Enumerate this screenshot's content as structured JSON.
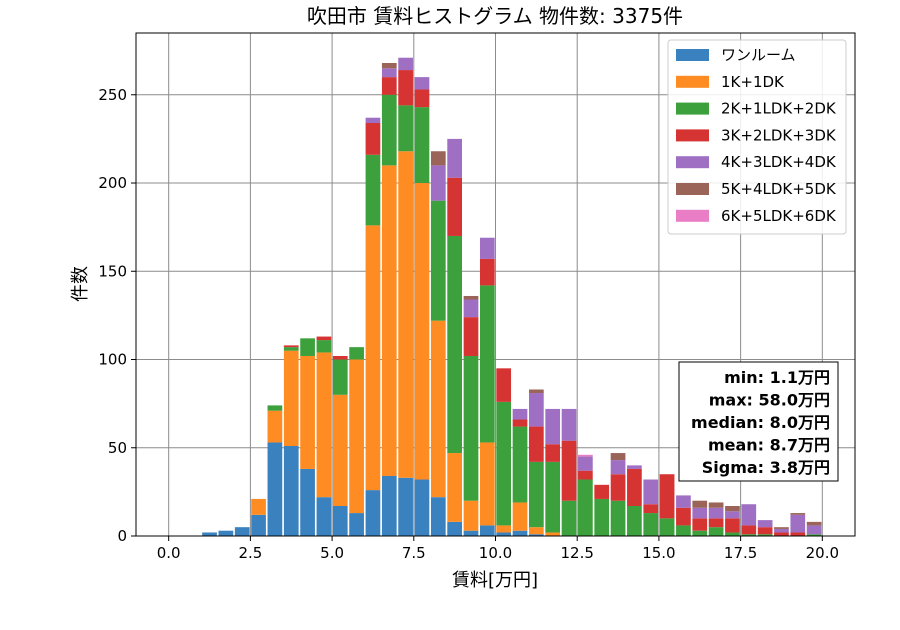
{
  "chart_data": {
    "type": "bar",
    "stacked": true,
    "title": "吹田市 賃料ヒストグラム  物件数: 3375件",
    "xlabel": "賃料[万円]",
    "ylabel": "件数",
    "xlim": [
      -1.0,
      21.0
    ],
    "ylim": [
      0,
      285
    ],
    "xticks": [
      "0.0",
      "2.5",
      "5.0",
      "7.5",
      "10.0",
      "12.5",
      "15.0",
      "17.5",
      "20.0"
    ],
    "xtick_values": [
      0,
      2.5,
      5,
      7.5,
      10,
      12.5,
      15,
      17.5,
      20
    ],
    "yticks": [
      "0",
      "50",
      "100",
      "150",
      "200",
      "250"
    ],
    "ytick_values": [
      0,
      50,
      100,
      150,
      200,
      250
    ],
    "grid": true,
    "legend_position": "top-right",
    "bin_width": 0.5,
    "bin_start": 1.0,
    "bar_fill_fraction": 0.9,
    "series": [
      {
        "name": "ワンルーム",
        "color": "#3a82bf",
        "values": [
          2,
          3,
          5,
          12,
          53,
          51,
          38,
          22,
          17,
          13,
          26,
          34,
          33,
          32,
          22,
          8,
          3,
          6,
          2,
          3,
          1,
          0,
          0,
          0,
          0,
          0,
          0,
          0,
          0,
          0,
          0,
          0,
          0,
          0,
          0,
          0,
          0,
          0
        ]
      },
      {
        "name": "1K+1DK",
        "color": "#ff8c23",
        "values": [
          0,
          0,
          0,
          9,
          18,
          54,
          64,
          82,
          63,
          87,
          150,
          176,
          185,
          168,
          100,
          39,
          17,
          47,
          4,
          16,
          4,
          2,
          0,
          0,
          0,
          0,
          0,
          0,
          0,
          0,
          0,
          0,
          0,
          0,
          0,
          0,
          0,
          0
        ]
      },
      {
        "name": "2K+1LDK+2DK",
        "color": "#3ca03c",
        "values": [
          0,
          0,
          0,
          0,
          3,
          2,
          10,
          7,
          20,
          7,
          40,
          40,
          26,
          43,
          68,
          123,
          82,
          89,
          70,
          43,
          37,
          40,
          20,
          32,
          21,
          20,
          17,
          13,
          10,
          6,
          3,
          5,
          2,
          1,
          1,
          0,
          0,
          1
        ]
      },
      {
        "name": "3K+2LDK+3DK",
        "color": "#d63333",
        "values": [
          0,
          0,
          0,
          0,
          0,
          1,
          0,
          2,
          2,
          0,
          18,
          10,
          20,
          10,
          0,
          33,
          22,
          15,
          19,
          4,
          20,
          10,
          34,
          5,
          8,
          15,
          21,
          5,
          25,
          10,
          7,
          5,
          8,
          5,
          4,
          2,
          2,
          0
        ]
      },
      {
        "name": "4K+3LDK+4DK",
        "color": "#9e6fc2",
        "values": [
          0,
          0,
          0,
          0,
          0,
          0,
          0,
          0,
          0,
          0,
          3,
          5,
          7,
          7,
          20,
          22,
          10,
          12,
          0,
          6,
          19,
          20,
          18,
          8,
          0,
          8,
          2,
          14,
          0,
          7,
          6,
          6,
          4,
          12,
          4,
          2,
          10,
          5
        ]
      },
      {
        "name": "5K+4LDK+5DK",
        "color": "#9a6458",
        "values": [
          0,
          0,
          0,
          0,
          0,
          0,
          0,
          0,
          0,
          0,
          0,
          3,
          0,
          0,
          8,
          0,
          2,
          0,
          0,
          0,
          2,
          0,
          0,
          0,
          0,
          4,
          0,
          0,
          0,
          0,
          4,
          3,
          3,
          0,
          0,
          1,
          1,
          2
        ]
      },
      {
        "name": "6K+5LDK+6DK",
        "color": "#e97ec7",
        "values": [
          0,
          0,
          0,
          0,
          0,
          0,
          0,
          0,
          0,
          0,
          0,
          0,
          0,
          0,
          0,
          0,
          0,
          0,
          0,
          0,
          0,
          0,
          0,
          1,
          0,
          0,
          0,
          0,
          0,
          0,
          0,
          0,
          0,
          0,
          0,
          0,
          0,
          0
        ]
      }
    ],
    "stats_box": [
      "min: 1.1万円",
      "max: 58.0万円",
      "median: 8.0万円",
      "mean: 8.7万円",
      "Sigma: 3.8万円"
    ]
  }
}
